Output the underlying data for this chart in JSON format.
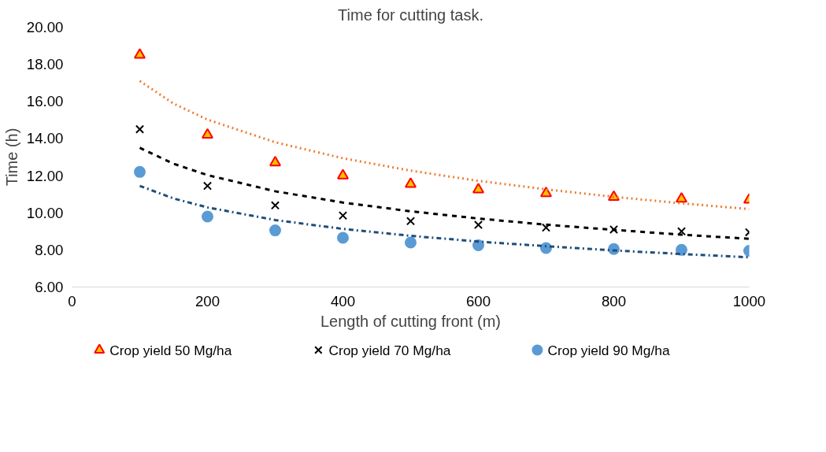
{
  "chart_data": {
    "type": "scatter",
    "title": "Time for cutting task.",
    "xlabel": "Length of cutting front (m)",
    "ylabel": "Time (h)",
    "x": [
      100,
      200,
      300,
      400,
      500,
      600,
      700,
      800,
      900,
      1000
    ],
    "series": [
      {
        "name": "Crop yield 50 Mg/ha",
        "color": "#ff0000",
        "marker": "triangle",
        "values": [
          18.5,
          14.2,
          12.7,
          12.0,
          11.55,
          11.25,
          11.05,
          10.85,
          10.75,
          10.7
        ]
      },
      {
        "name": "Crop yield 70 Mg/ha",
        "color": "#000000",
        "marker": "cross",
        "values": [
          14.5,
          11.45,
          10.4,
          9.85,
          9.55,
          9.35,
          9.2,
          9.1,
          9.0,
          8.95
        ]
      },
      {
        "name": "Crop yield 90 Mg/ha",
        "color": "#5b9bd5",
        "marker": "circle",
        "values": [
          12.2,
          9.8,
          9.05,
          8.65,
          8.4,
          8.25,
          8.1,
          8.05,
          8.0,
          7.95
        ]
      },
      {
        "type": "line",
        "color": "#ed7d31",
        "line_style": "dotted",
        "x": [
          100,
          150,
          200,
          300,
          400,
          500,
          600,
          700,
          800,
          900,
          1000
        ],
        "values": [
          17.1,
          15.88,
          15.02,
          13.8,
          12.94,
          12.27,
          11.72,
          11.26,
          10.86,
          10.51,
          10.2
        ]
      },
      {
        "type": "line",
        "color": "#000000",
        "line_style": "dashed",
        "x": [
          100,
          150,
          200,
          300,
          400,
          500,
          600,
          700,
          800,
          900,
          1000
        ],
        "values": [
          13.5,
          12.64,
          12.03,
          11.16,
          10.55,
          10.08,
          9.69,
          9.36,
          9.08,
          8.82,
          8.6
        ]
      },
      {
        "type": "line",
        "color": "#1f4e79",
        "line_style": "dashdot",
        "x": [
          100,
          150,
          200,
          300,
          400,
          500,
          600,
          700,
          800,
          900,
          1000
        ],
        "values": [
          11.45,
          10.77,
          10.29,
          9.61,
          9.13,
          8.76,
          8.45,
          8.2,
          7.97,
          7.78,
          7.6
        ]
      }
    ],
    "xlim": [
      0,
      1000
    ],
    "xticks": [
      0,
      200,
      400,
      600,
      800,
      1000
    ],
    "ylim": [
      6,
      20
    ],
    "yticks": [
      {
        "value": 6,
        "label": "6.00"
      },
      {
        "value": 8,
        "label": "8.00"
      },
      {
        "value": 10,
        "label": "10.00"
      },
      {
        "value": 12,
        "label": "12.00"
      },
      {
        "value": 14,
        "label": "14.00"
      },
      {
        "value": 16,
        "label": "16.00"
      },
      {
        "value": 18,
        "label": "18.00"
      },
      {
        "value": 20,
        "label": "20.00"
      }
    ],
    "grid": false,
    "legend": "bottom"
  }
}
